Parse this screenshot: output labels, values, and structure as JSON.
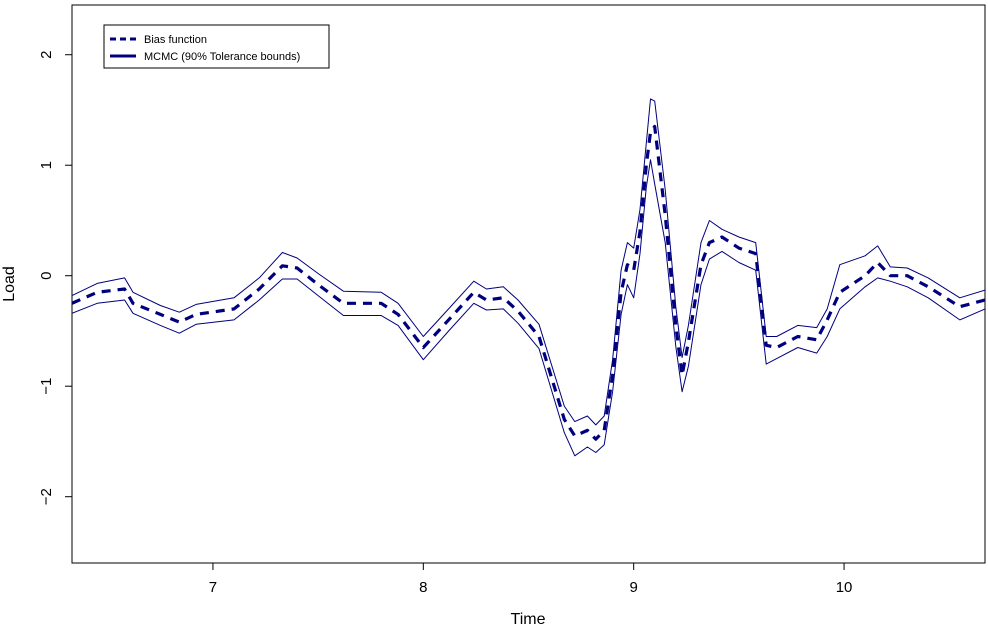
{
  "chart_data": {
    "type": "line",
    "title": "",
    "xlabel": "Time",
    "ylabel": "Load",
    "xlim": [
      6.33,
      10.67
    ],
    "ylim": [
      -2.6,
      2.45
    ],
    "xticks": [
      7,
      8,
      9,
      10
    ],
    "xtick_labels": [
      "7",
      "8",
      "9",
      "10"
    ],
    "yticks": [
      -2,
      -1,
      0,
      1,
      2
    ],
    "ytick_labels": [
      "−2",
      "−1",
      "0",
      "1",
      "2"
    ],
    "grid": false,
    "legend_position": "top-left",
    "colors": {
      "series": "#00007f",
      "frame": "#000000"
    },
    "legend": [
      {
        "label": "Bias function",
        "style": "dashed"
      },
      {
        "label": "MCMC (90% Tolerance bounds)",
        "style": "solid"
      }
    ],
    "series": [
      {
        "name": "Bias function",
        "style": "dashed",
        "x": [
          6.33,
          6.45,
          6.58,
          6.62,
          6.75,
          6.84,
          6.92,
          7.1,
          7.22,
          7.33,
          7.4,
          7.5,
          7.62,
          7.8,
          7.88,
          8.0,
          8.12,
          8.24,
          8.3,
          8.38,
          8.45,
          8.55,
          8.67,
          8.72,
          8.78,
          8.82,
          8.86,
          8.9,
          8.94,
          8.97,
          9.0,
          9.03,
          9.06,
          9.08,
          9.1,
          9.15,
          9.2,
          9.23,
          9.26,
          9.32,
          9.36,
          9.42,
          9.5,
          9.58,
          9.63,
          9.68,
          9.78,
          9.87,
          9.92,
          9.98,
          10.1,
          10.16,
          10.22,
          10.3,
          10.4,
          10.55,
          10.67
        ],
        "values": [
          -0.25,
          -0.15,
          -0.12,
          -0.25,
          -0.35,
          -0.42,
          -0.35,
          -0.3,
          -0.12,
          0.09,
          0.07,
          -0.08,
          -0.25,
          -0.25,
          -0.35,
          -0.65,
          -0.4,
          -0.15,
          -0.22,
          -0.2,
          -0.32,
          -0.55,
          -1.3,
          -1.45,
          -1.4,
          -1.48,
          -1.4,
          -0.9,
          -0.15,
          0.1,
          0.05,
          0.4,
          1.0,
          1.3,
          1.35,
          0.55,
          -0.45,
          -0.9,
          -0.6,
          0.1,
          0.3,
          0.35,
          0.25,
          0.2,
          -0.63,
          -0.65,
          -0.55,
          -0.58,
          -0.4,
          -0.15,
          0.0,
          0.12,
          0.0,
          0.0,
          -0.1,
          -0.28,
          -0.22
        ]
      },
      {
        "name": "MCMC (90% Tolerance bounds)",
        "bound": "upper",
        "style": "solid",
        "x": [
          6.33,
          6.45,
          6.58,
          6.62,
          6.75,
          6.84,
          6.92,
          7.1,
          7.22,
          7.33,
          7.4,
          7.5,
          7.62,
          7.8,
          7.88,
          8.0,
          8.12,
          8.24,
          8.3,
          8.38,
          8.45,
          8.55,
          8.67,
          8.72,
          8.78,
          8.82,
          8.86,
          8.9,
          8.94,
          8.97,
          9.0,
          9.03,
          9.06,
          9.08,
          9.1,
          9.15,
          9.2,
          9.23,
          9.26,
          9.32,
          9.36,
          9.42,
          9.5,
          9.58,
          9.63,
          9.68,
          9.78,
          9.87,
          9.92,
          9.98,
          10.1,
          10.16,
          10.22,
          10.3,
          10.4,
          10.55,
          10.67
        ],
        "values": [
          -0.18,
          -0.07,
          -0.02,
          -0.15,
          -0.27,
          -0.33,
          -0.26,
          -0.2,
          -0.02,
          0.21,
          0.16,
          0.02,
          -0.14,
          -0.15,
          -0.25,
          -0.55,
          -0.3,
          -0.05,
          -0.12,
          -0.1,
          -0.22,
          -0.44,
          -1.18,
          -1.32,
          -1.27,
          -1.35,
          -1.27,
          -0.76,
          0.05,
          0.3,
          0.25,
          0.6,
          1.2,
          1.6,
          1.58,
          0.78,
          -0.28,
          -0.74,
          -0.45,
          0.3,
          0.5,
          0.42,
          0.35,
          0.3,
          -0.55,
          -0.55,
          -0.45,
          -0.47,
          -0.3,
          0.1,
          0.18,
          0.27,
          0.08,
          0.07,
          -0.02,
          -0.2,
          -0.13
        ]
      },
      {
        "name": "",
        "bound": "lower",
        "style": "solid",
        "x": [
          6.33,
          6.45,
          6.58,
          6.62,
          6.75,
          6.84,
          6.92,
          7.1,
          7.22,
          7.33,
          7.4,
          7.5,
          7.62,
          7.8,
          7.88,
          8.0,
          8.12,
          8.24,
          8.3,
          8.38,
          8.45,
          8.55,
          8.67,
          8.72,
          8.78,
          8.82,
          8.86,
          8.9,
          8.94,
          8.97,
          9.0,
          9.03,
          9.06,
          9.08,
          9.1,
          9.15,
          9.2,
          9.23,
          9.26,
          9.32,
          9.36,
          9.42,
          9.5,
          9.58,
          9.63,
          9.68,
          9.78,
          9.87,
          9.92,
          9.98,
          10.1,
          10.16,
          10.22,
          10.3,
          10.4,
          10.55,
          10.67
        ],
        "values": [
          -0.34,
          -0.25,
          -0.22,
          -0.34,
          -0.45,
          -0.52,
          -0.44,
          -0.4,
          -0.22,
          -0.03,
          -0.03,
          -0.18,
          -0.36,
          -0.36,
          -0.45,
          -0.76,
          -0.5,
          -0.25,
          -0.31,
          -0.3,
          -0.43,
          -0.66,
          -1.42,
          -1.63,
          -1.55,
          -1.6,
          -1.53,
          -1.05,
          -0.35,
          -0.08,
          -0.2,
          0.2,
          0.8,
          1.05,
          0.83,
          0.3,
          -0.64,
          -1.05,
          -0.82,
          -0.08,
          0.15,
          0.22,
          0.12,
          0.05,
          -0.8,
          -0.75,
          -0.65,
          -0.7,
          -0.55,
          -0.3,
          -0.1,
          -0.02,
          -0.05,
          -0.1,
          -0.2,
          -0.4,
          -0.3
        ]
      }
    ]
  }
}
